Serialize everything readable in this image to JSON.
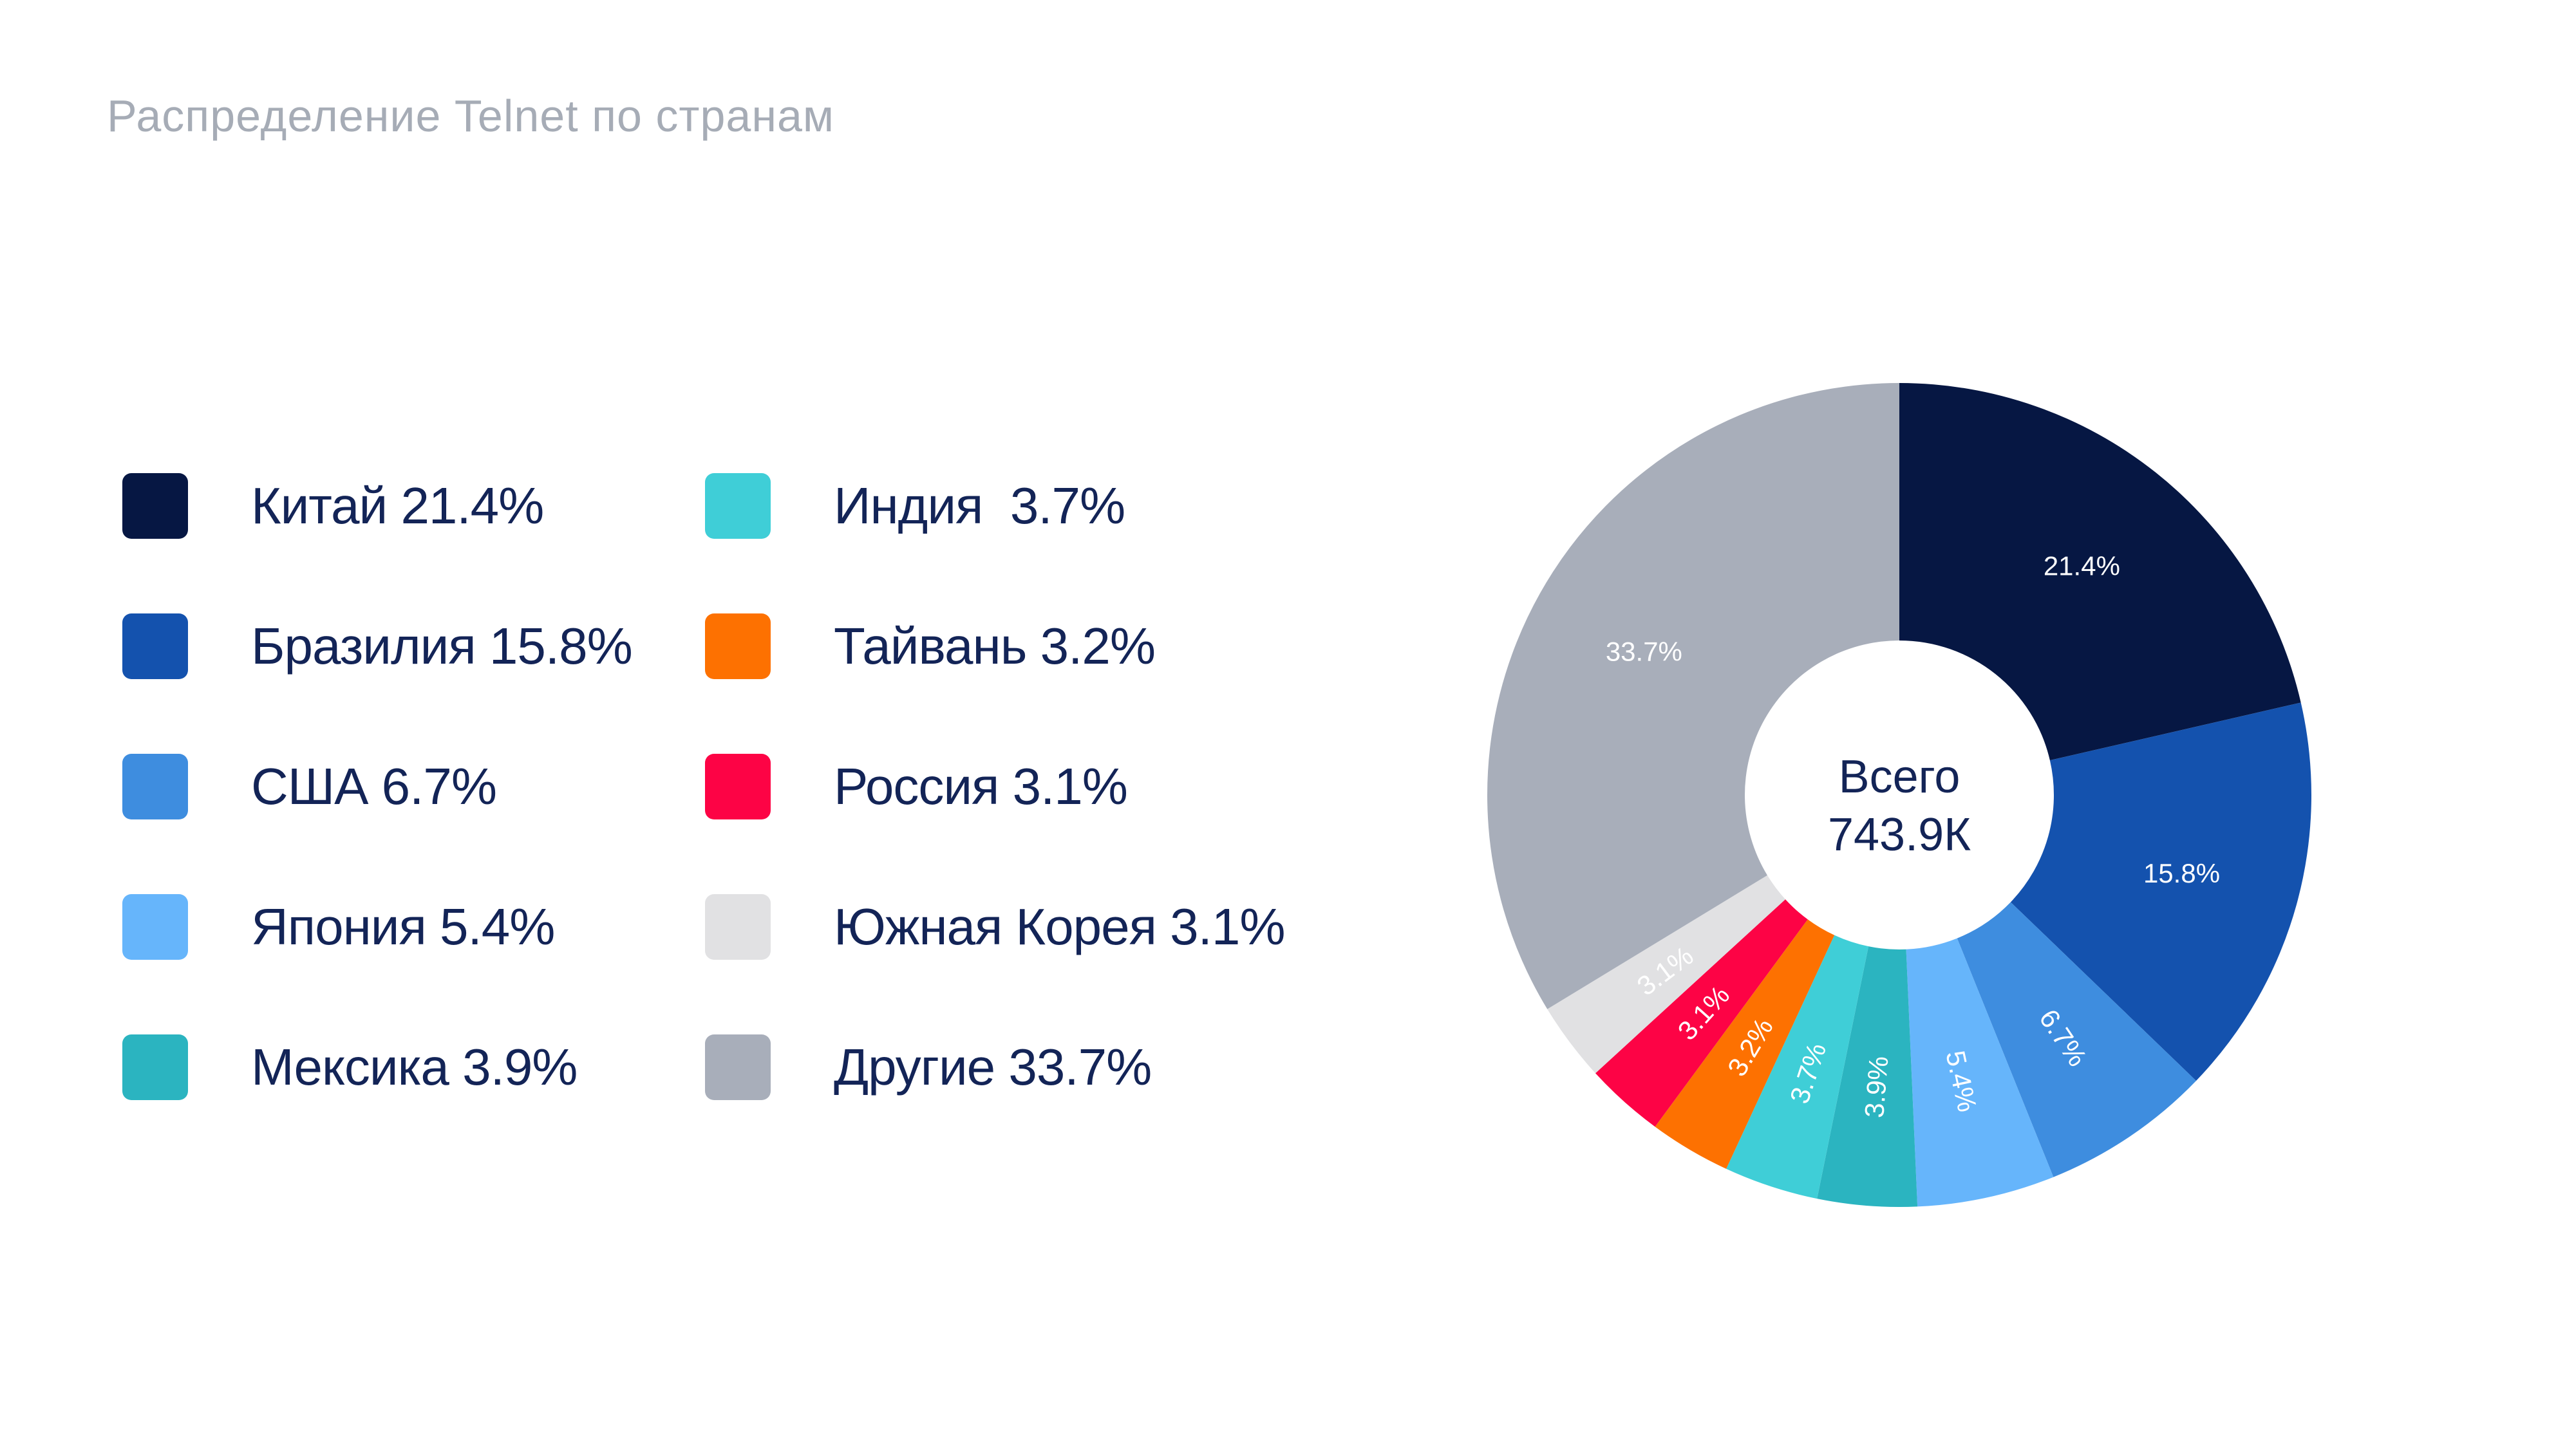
{
  "page": {
    "background": "#ffffff",
    "title": "Распределение Telnet по странам",
    "title_color": "#a6acb6"
  },
  "legend": {
    "text_color": "#132457",
    "items": [
      {
        "text": "Китай 21.4%",
        "color": "#061743"
      },
      {
        "text": "Бразилия 15.8%",
        "color": "#1452ae"
      },
      {
        "text": "США 6.7%",
        "color": "#3e8ddf"
      },
      {
        "text": "Япония 5.4%",
        "color": "#66b5fb"
      },
      {
        "text": "Мексика 3.9%",
        "color": "#2bb4c0"
      },
      {
        "text": "Индия  3.7%",
        "color": "#3fced7"
      },
      {
        "text": "Тайвань 3.2%",
        "color": "#fd7101"
      },
      {
        "text": "Россия 3.1%",
        "color": "#fd0345"
      },
      {
        "text": "Южная Корея 3.1%",
        "color": "#e1e1e3"
      },
      {
        "text": "Другие 33.7%",
        "color": "#a8aeba"
      }
    ]
  },
  "chart_data": {
    "type": "pie",
    "subtype": "donut",
    "title": "Распределение Telnet по странам",
    "start_angle": "12-oclock, clockwise",
    "inner_radius_ratio": 0.375,
    "center_label": {
      "line1": "Всего",
      "line2": "743.9К"
    },
    "slice_label_color": "#ffffff",
    "slices": [
      {
        "label": "Китай",
        "value": 21.4,
        "color": "#061743"
      },
      {
        "label": "Бразилия",
        "value": 15.8,
        "color": "#1452ae"
      },
      {
        "label": "США",
        "value": 6.7,
        "color": "#3e8ddf"
      },
      {
        "label": "Япония",
        "value": 5.4,
        "color": "#66b5fb"
      },
      {
        "label": "Мексика",
        "value": 3.9,
        "color": "#2bb4c0"
      },
      {
        "label": "Индия",
        "value": 3.7,
        "color": "#3fced7"
      },
      {
        "label": "Тайвань",
        "value": 3.2,
        "color": "#fd7101"
      },
      {
        "label": "Россия",
        "value": 3.1,
        "color": "#fd0345"
      },
      {
        "label": "Южная Корея",
        "value": 3.1,
        "color": "#e1e1e3"
      },
      {
        "label": "Другие",
        "value": 33.7,
        "color": "#a8aeba"
      }
    ],
    "total_label_value": "743.9К",
    "legend_position": "left",
    "grid": false
  }
}
